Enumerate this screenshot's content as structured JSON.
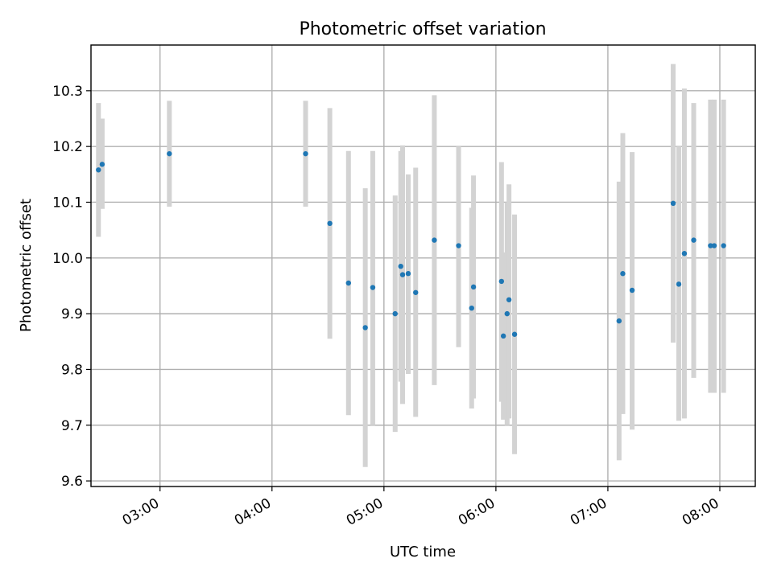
{
  "chart_data": {
    "type": "scatter",
    "title": "Photometric offset variation",
    "xlabel": "UTC time",
    "ylabel": "Photometric offset",
    "xlim": [
      "02:23",
      "08:19"
    ],
    "ylim": [
      9.59,
      10.382
    ],
    "x_tick_labels": [
      "03:00",
      "04:00",
      "05:00",
      "06:00",
      "07:00",
      "08:00"
    ],
    "y_ticks": [
      9.6,
      9.7,
      9.8,
      9.9,
      10.0,
      10.1,
      10.2,
      10.3
    ],
    "y_tick_labels": [
      "9.6",
      "9.7",
      "9.8",
      "9.9",
      "10.0",
      "10.1",
      "10.2",
      "10.3"
    ],
    "grid": true,
    "colors": {
      "points": "#1f77b4",
      "errorbars": "#d3d3d3",
      "grid": "#b0b0b0"
    },
    "series": [
      {
        "points": [
          {
            "x": "02:27",
            "y": 10.158,
            "ylow": 10.038,
            "yhigh": 10.278
          },
          {
            "x": "02:29",
            "y": 10.168,
            "ylow": 10.088,
            "yhigh": 10.25
          },
          {
            "x": "03:05",
            "y": 10.187,
            "ylow": 10.092,
            "yhigh": 10.282
          },
          {
            "x": "04:18",
            "y": 10.187,
            "ylow": 10.092,
            "yhigh": 10.282
          },
          {
            "x": "04:31",
            "y": 10.062,
            "ylow": 9.855,
            "yhigh": 10.269
          },
          {
            "x": "04:41",
            "y": 9.955,
            "ylow": 9.718,
            "yhigh": 10.192
          },
          {
            "x": "04:50",
            "y": 9.875,
            "ylow": 9.625,
            "yhigh": 10.125
          },
          {
            "x": "04:54",
            "y": 9.947,
            "ylow": 9.7,
            "yhigh": 10.192
          },
          {
            "x": "05:06",
            "y": 9.9,
            "ylow": 9.688,
            "yhigh": 10.112
          },
          {
            "x": "05:09",
            "y": 9.985,
            "ylow": 9.778,
            "yhigh": 10.192
          },
          {
            "x": "05:10",
            "y": 9.97,
            "ylow": 9.738,
            "yhigh": 10.202
          },
          {
            "x": "05:13",
            "y": 9.972,
            "ylow": 9.792,
            "yhigh": 10.15
          },
          {
            "x": "05:17",
            "y": 9.938,
            "ylow": 9.715,
            "yhigh": 10.162
          },
          {
            "x": "05:27",
            "y": 10.032,
            "ylow": 9.772,
            "yhigh": 10.292
          },
          {
            "x": "05:40",
            "y": 10.022,
            "ylow": 9.84,
            "yhigh": 10.2
          },
          {
            "x": "05:47",
            "y": 9.91,
            "ylow": 9.73,
            "yhigh": 10.09
          },
          {
            "x": "05:48",
            "y": 9.948,
            "ylow": 9.748,
            "yhigh": 10.148
          },
          {
            "x": "06:03",
            "y": 9.958,
            "ylow": 9.742,
            "yhigh": 10.172
          },
          {
            "x": "06:04",
            "y": 9.86,
            "ylow": 9.71,
            "yhigh": 10.01
          },
          {
            "x": "06:06",
            "y": 9.9,
            "ylow": 9.7,
            "yhigh": 10.1
          },
          {
            "x": "06:07",
            "y": 9.925,
            "ylow": 9.712,
            "yhigh": 10.132
          },
          {
            "x": "06:10",
            "y": 9.863,
            "ylow": 9.648,
            "yhigh": 10.078
          },
          {
            "x": "07:06",
            "y": 9.887,
            "ylow": 9.637,
            "yhigh": 10.137
          },
          {
            "x": "07:08",
            "y": 9.972,
            "ylow": 9.72,
            "yhigh": 10.224
          },
          {
            "x": "07:13",
            "y": 9.942,
            "ylow": 9.692,
            "yhigh": 10.19
          },
          {
            "x": "07:35",
            "y": 10.098,
            "ylow": 9.848,
            "yhigh": 10.348
          },
          {
            "x": "07:38",
            "y": 9.953,
            "ylow": 9.708,
            "yhigh": 10.2
          },
          {
            "x": "07:41",
            "y": 10.008,
            "ylow": 9.712,
            "yhigh": 10.304
          },
          {
            "x": "07:46",
            "y": 10.032,
            "ylow": 9.785,
            "yhigh": 10.278
          },
          {
            "x": "07:55",
            "y": 10.022,
            "ylow": 9.758,
            "yhigh": 10.284
          },
          {
            "x": "07:57",
            "y": 10.022,
            "ylow": 9.758,
            "yhigh": 10.284
          },
          {
            "x": "08:02",
            "y": 10.022,
            "ylow": 9.758,
            "yhigh": 10.284
          }
        ]
      }
    ]
  }
}
